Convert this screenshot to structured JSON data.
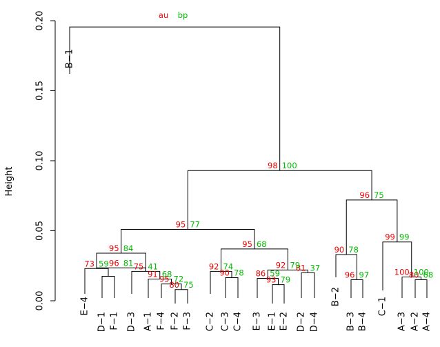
{
  "chart_data": {
    "type": "dendrogram",
    "ylabel": "Height",
    "ylim": [
      0,
      0.2
    ],
    "yticks": [
      "0.00",
      "0.05",
      "0.10",
      "0.15",
      "0.20"
    ],
    "legend": {
      "au": "au",
      "bp": "bp"
    },
    "colors": {
      "au": "#ee0000",
      "bp": "#00bb00",
      "lines": "#000000"
    },
    "leaves": [
      "B−1",
      "E−4",
      "D−1",
      "F−1",
      "D−3",
      "A−1",
      "F−4",
      "F−2",
      "F−3",
      "C−2",
      "C−3",
      "C−4",
      "E−3",
      "E−1",
      "E−2",
      "D−2",
      "D−4",
      "B−2",
      "B−3",
      "B−4",
      "C−1",
      "A−3",
      "A−2",
      "A−4"
    ],
    "merges": [
      {
        "left": "D−1",
        "right": "F−1",
        "height": 0.0175,
        "au": "",
        "bp": ""
      },
      {
        "left": "m0",
        "right": "E−4",
        "height": 0.023,
        "au": "73",
        "bp": "59"
      },
      {
        "left": "F−2",
        "right": "F−3",
        "height": 0.008,
        "au": "80",
        "bp": "75"
      },
      {
        "left": "F−4",
        "right": "m2",
        "height": 0.012,
        "au": "95",
        "bp": "72"
      },
      {
        "left": "A−1",
        "right": "m3",
        "height": 0.0155,
        "au": "91",
        "bp": "68"
      },
      {
        "left": "D−3",
        "right": "m4",
        "height": 0.021,
        "au": "75",
        "bp": "41"
      },
      {
        "left": "m1",
        "right": "m5",
        "height": 0.0235,
        "au": "96",
        "bp": "81"
      },
      {
        "left": "m6",
        "right": "m0x",
        "height": 0.034,
        "au": "95",
        "bp": "84"
      },
      {
        "left": "C−3",
        "right": "C−4",
        "height": 0.0165,
        "au": "90",
        "bp": "78"
      },
      {
        "left": "C−2",
        "right": "m8",
        "height": 0.021,
        "au": "92",
        "bp": "74"
      },
      {
        "left": "E−1",
        "right": "E−2",
        "height": 0.0115,
        "au": "93",
        "bp": "79"
      },
      {
        "left": "E−3",
        "right": "m10",
        "height": 0.016,
        "au": "86",
        "bp": "59"
      },
      {
        "left": "D−2",
        "right": "D−4",
        "height": 0.02,
        "au": "81",
        "bp": "37"
      },
      {
        "left": "m11",
        "right": "m12",
        "height": 0.022,
        "au": "92",
        "bp": "79"
      },
      {
        "left": "m9",
        "right": "m13",
        "height": 0.037,
        "au": "95",
        "bp": "68"
      },
      {
        "left": "m7",
        "right": "m14",
        "height": 0.051,
        "au": "95",
        "bp": "77"
      },
      {
        "left": "B−3",
        "right": "B−4",
        "height": 0.015,
        "au": "96",
        "bp": "97"
      },
      {
        "left": "B−2",
        "right": "m16",
        "height": 0.033,
        "au": "90",
        "bp": "78"
      },
      {
        "left": "A−2",
        "right": "A−4",
        "height": 0.015,
        "au": "80",
        "bp": "68"
      },
      {
        "left": "A−3",
        "right": "m18",
        "height": 0.017,
        "au": "100",
        "bp": "100"
      },
      {
        "left": "C−1",
        "right": "m19",
        "height": 0.042,
        "au": "99",
        "bp": "99"
      },
      {
        "left": "m17",
        "right": "m20",
        "height": 0.072,
        "au": "96",
        "bp": "75"
      },
      {
        "left": "m15",
        "right": "m21",
        "height": 0.093,
        "au": "98",
        "bp": "100"
      },
      {
        "left": "B−1",
        "right": "m22",
        "height": 0.1955,
        "au": "",
        "bp": ""
      }
    ]
  }
}
